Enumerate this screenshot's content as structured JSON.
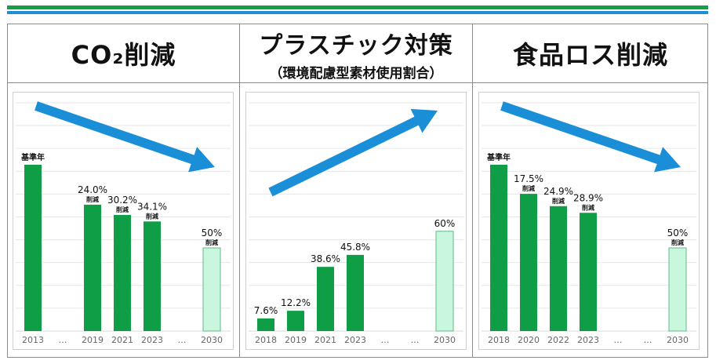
{
  "colors": {
    "bar": "#0f9d45",
    "target_fill": "#c8f7de",
    "target_stroke": "#5fb98a",
    "arrow": "#1a8fd8",
    "stripe_green": "#14a04a",
    "stripe_blue": "#1e8fd6"
  },
  "panels": [
    {
      "title_main": "CO₂削減",
      "title_sub": ""
    },
    {
      "title_main": "プラスチック対策",
      "title_sub": "（環境配慮型素材使用割合）"
    },
    {
      "title_main": "食品ロス削減",
      "title_sub": ""
    }
  ],
  "chart_data": [
    {
      "type": "bar",
      "title": "CO₂削減",
      "trend_arrow": "down",
      "ylim": [
        0,
        100
      ],
      "categories": [
        "2013",
        "…",
        "2019",
        "2021",
        "2023",
        "…",
        "2030"
      ],
      "values": [
        100,
        null,
        76,
        69.8,
        65.9,
        null,
        50
      ],
      "labels": [
        {
          "top": "基準年",
          "sub": ""
        },
        null,
        {
          "top": "24.0%",
          "sub": "削減"
        },
        {
          "top": "30.2%",
          "sub": "削減"
        },
        {
          "top": "34.1%",
          "sub": "削減"
        },
        null,
        {
          "top": "50%",
          "sub": "削減"
        }
      ],
      "target_index": 6
    },
    {
      "type": "bar",
      "title": "プラスチック対策（環境配慮型素材使用割合）",
      "trend_arrow": "up",
      "ylim": [
        0,
        100
      ],
      "categories": [
        "2018",
        "2019",
        "2021",
        "2023",
        "…",
        "…",
        "2030"
      ],
      "values": [
        7.6,
        12.2,
        38.6,
        45.8,
        null,
        null,
        60
      ],
      "labels": [
        {
          "top": "7.6%",
          "sub": ""
        },
        {
          "top": "12.2%",
          "sub": ""
        },
        {
          "top": "38.6%",
          "sub": ""
        },
        {
          "top": "45.8%",
          "sub": ""
        },
        null,
        null,
        {
          "top": "60%",
          "sub": ""
        }
      ],
      "target_index": 6
    },
    {
      "type": "bar",
      "title": "食品ロス削減",
      "trend_arrow": "down",
      "ylim": [
        0,
        100
      ],
      "categories": [
        "2018",
        "2020",
        "2022",
        "2023",
        "…",
        "…",
        "2030"
      ],
      "values": [
        100,
        82.5,
        75.1,
        71.1,
        null,
        null,
        50
      ],
      "labels": [
        {
          "top": "基準年",
          "sub": ""
        },
        {
          "top": "17.5%",
          "sub": "削減"
        },
        {
          "top": "24.9%",
          "sub": "削減"
        },
        {
          "top": "28.9%",
          "sub": "削減"
        },
        null,
        null,
        {
          "top": "50%",
          "sub": "削減"
        }
      ],
      "target_index": 6
    }
  ]
}
